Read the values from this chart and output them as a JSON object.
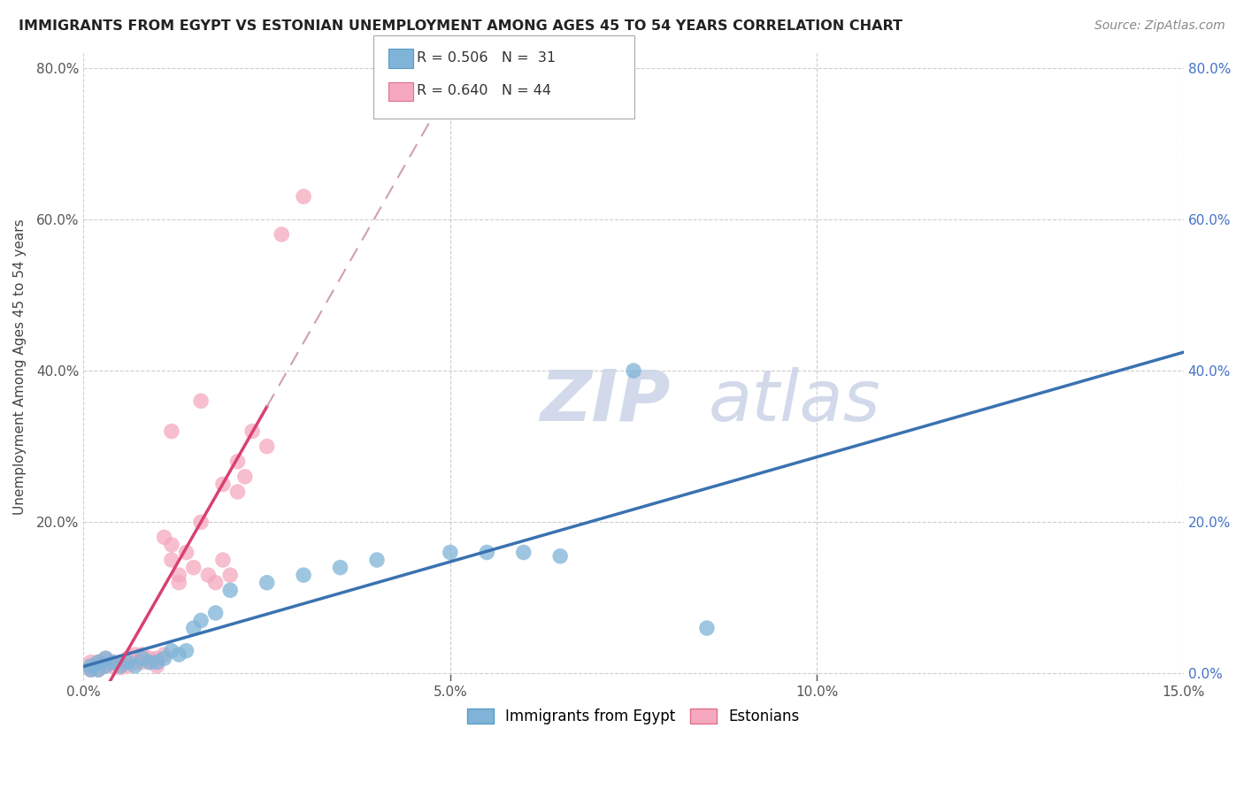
{
  "title": "IMMIGRANTS FROM EGYPT VS ESTONIAN UNEMPLOYMENT AMONG AGES 45 TO 54 YEARS CORRELATION CHART",
  "source": "Source: ZipAtlas.com",
  "ylabel": "Unemployment Among Ages 45 to 54 years",
  "xlim": [
    0.0,
    0.15
  ],
  "ylim": [
    -0.01,
    0.82
  ],
  "yticks": [
    0.0,
    0.2,
    0.4,
    0.6,
    0.8
  ],
  "ytick_labels_left": [
    "",
    "20.0%",
    "40.0%",
    "60.0%",
    "80.0%"
  ],
  "ytick_labels_right": [
    "0.0%",
    "20.0%",
    "40.0%",
    "60.0%",
    "80.0%"
  ],
  "xticks": [
    0.0,
    0.05,
    0.1,
    0.15
  ],
  "xtick_labels": [
    "0.0%",
    "5.0%",
    "10.0%",
    "15.0%"
  ],
  "blue_color": "#7fb4d8",
  "blue_edge": "#5a9bc4",
  "pink_color": "#f5a8be",
  "pink_edge": "#e07090",
  "trend_blue_color": "#3a72b0",
  "trend_pink_solid_color": "#d94070",
  "trend_pink_dash_color": "#d0a0b0",
  "background_color": "#ffffff",
  "grid_color": "#c8c8c8",
  "watermark_color": "#cdd5e8",
  "blue_scatter_x": [
    0.001,
    0.001,
    0.002,
    0.002,
    0.003,
    0.003,
    0.004,
    0.005,
    0.006,
    0.007,
    0.008,
    0.009,
    0.01,
    0.011,
    0.012,
    0.013,
    0.014,
    0.015,
    0.016,
    0.018,
    0.02,
    0.025,
    0.03,
    0.035,
    0.04,
    0.05,
    0.055,
    0.06,
    0.065,
    0.075,
    0.085
  ],
  "blue_scatter_y": [
    0.005,
    0.01,
    0.005,
    0.015,
    0.02,
    0.01,
    0.015,
    0.01,
    0.015,
    0.01,
    0.02,
    0.015,
    0.015,
    0.02,
    0.03,
    0.025,
    0.03,
    0.06,
    0.07,
    0.08,
    0.11,
    0.12,
    0.13,
    0.14,
    0.15,
    0.16,
    0.16,
    0.16,
    0.155,
    0.4,
    0.06
  ],
  "pink_scatter_x": [
    0.001,
    0.001,
    0.001,
    0.002,
    0.002,
    0.003,
    0.003,
    0.004,
    0.004,
    0.005,
    0.005,
    0.006,
    0.006,
    0.007,
    0.007,
    0.008,
    0.008,
    0.009,
    0.009,
    0.01,
    0.01,
    0.011,
    0.011,
    0.012,
    0.012,
    0.013,
    0.013,
    0.014,
    0.015,
    0.016,
    0.017,
    0.018,
    0.019,
    0.02,
    0.021,
    0.022,
    0.023,
    0.025,
    0.027,
    0.03,
    0.012,
    0.016,
    0.019,
    0.021
  ],
  "pink_scatter_y": [
    0.005,
    0.01,
    0.015,
    0.005,
    0.015,
    0.01,
    0.02,
    0.01,
    0.015,
    0.008,
    0.015,
    0.01,
    0.02,
    0.015,
    0.025,
    0.015,
    0.025,
    0.015,
    0.02,
    0.01,
    0.02,
    0.025,
    0.18,
    0.15,
    0.17,
    0.12,
    0.13,
    0.16,
    0.14,
    0.2,
    0.13,
    0.12,
    0.15,
    0.13,
    0.28,
    0.26,
    0.32,
    0.3,
    0.58,
    0.63,
    0.32,
    0.36,
    0.25,
    0.24
  ]
}
